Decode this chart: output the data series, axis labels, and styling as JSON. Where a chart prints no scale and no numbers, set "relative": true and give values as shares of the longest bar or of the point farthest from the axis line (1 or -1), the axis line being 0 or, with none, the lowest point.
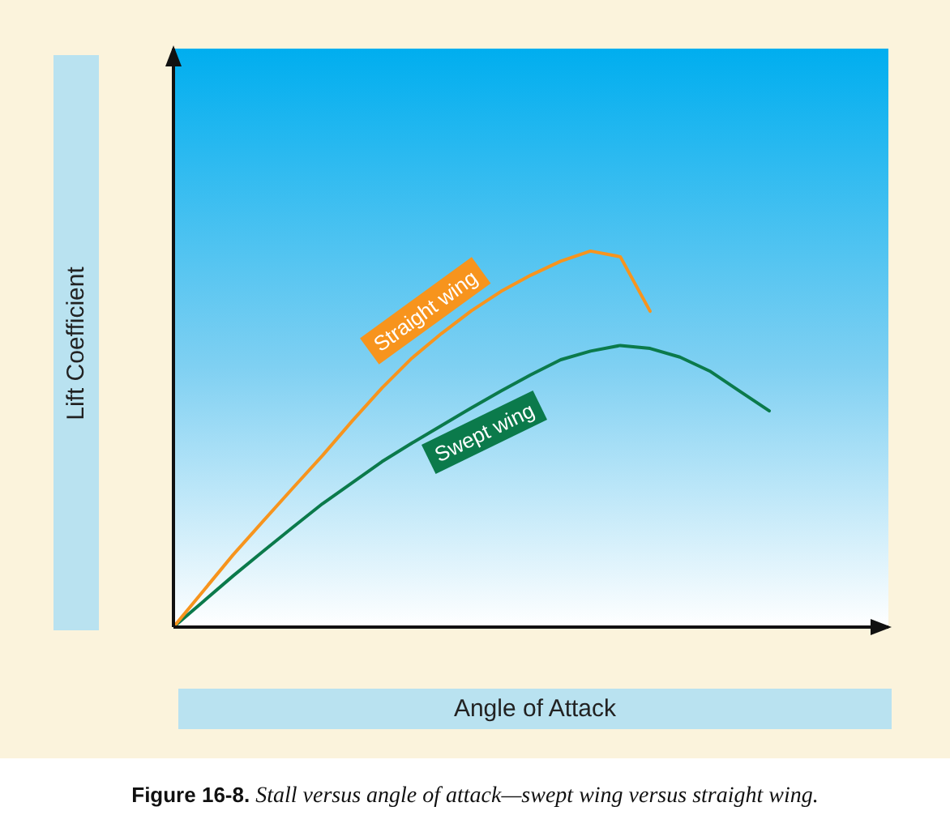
{
  "chart_data": {
    "type": "line",
    "relative": true,
    "xlabel": "Angle of Attack",
    "ylabel": "Lift Coefficient",
    "marker": "none",
    "line_style": "solid",
    "categories": [
      null,
      null,
      null,
      null,
      null,
      null,
      null,
      null,
      null,
      null,
      null,
      null,
      null,
      null,
      null,
      null,
      null,
      null,
      null,
      null,
      null,
      null,
      null,
      null,
      null
    ],
    "series": [
      {
        "name": "Straight wing",
        "color": "#f7941d",
        "values": [
          0,
          0.096,
          0.192,
          0.281,
          0.369,
          0.456,
          0.548,
          0.636,
          0.715,
          0.781,
          0.841,
          0.893,
          0.936,
          0.973,
          1,
          0.985,
          0.84,
          null,
          null,
          null,
          null,
          null,
          null,
          null,
          null
        ]
      },
      {
        "name": "Swept wing",
        "color": "#0b7a4b",
        "values": [
          0,
          0.068,
          0.136,
          0.201,
          0.265,
          0.328,
          0.384,
          0.44,
          0.489,
          0.536,
          0.583,
          0.628,
          0.671,
          0.711,
          0.734,
          0.749,
          0.741,
          0.718,
          0.681,
          0.628,
          0.575,
          null,
          null,
          null,
          null
        ]
      }
    ],
    "annotations": [
      "Figure 16-8. Stall versus angle of attack—swept wing versus straight wing."
    ]
  }
}
